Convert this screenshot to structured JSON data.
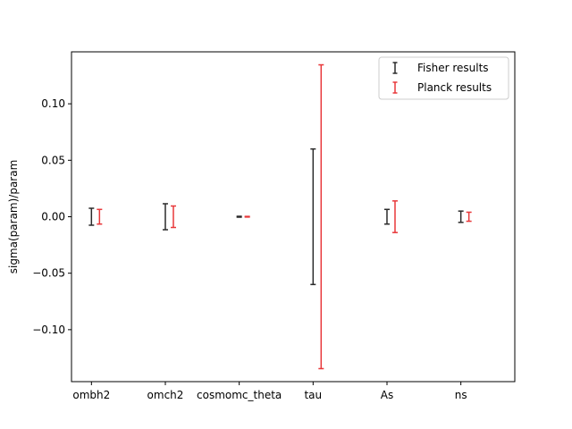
{
  "chart_data": {
    "type": "errorbar",
    "title": "",
    "xlabel": "",
    "ylabel": "sigma(param)/param",
    "categories": [
      "ombh2",
      "omch2",
      "cosmomc_theta",
      "tau",
      "As",
      "ns"
    ],
    "ylim": [
      -0.146,
      0.146
    ],
    "yticks": [
      -0.1,
      -0.05,
      0.0,
      0.05,
      0.1
    ],
    "ytick_labels": [
      "−0.10",
      "−0.05",
      "0.00",
      "0.05",
      "0.10"
    ],
    "legend_position": "top-right",
    "grid": false,
    "series": [
      {
        "name": "Fisher results",
        "color": "#2b2b2b",
        "center": [
          0,
          0,
          0,
          0,
          0,
          0
        ],
        "error": [
          0.0075,
          0.0115,
          0.0004,
          0.06,
          0.0065,
          0.005
        ]
      },
      {
        "name": "Planck results",
        "color": "#e8383a",
        "center": [
          0,
          0,
          0,
          0,
          0,
          0
        ],
        "error": [
          0.0065,
          0.0095,
          0.0003,
          0.1345,
          0.014,
          0.004
        ]
      }
    ]
  }
}
